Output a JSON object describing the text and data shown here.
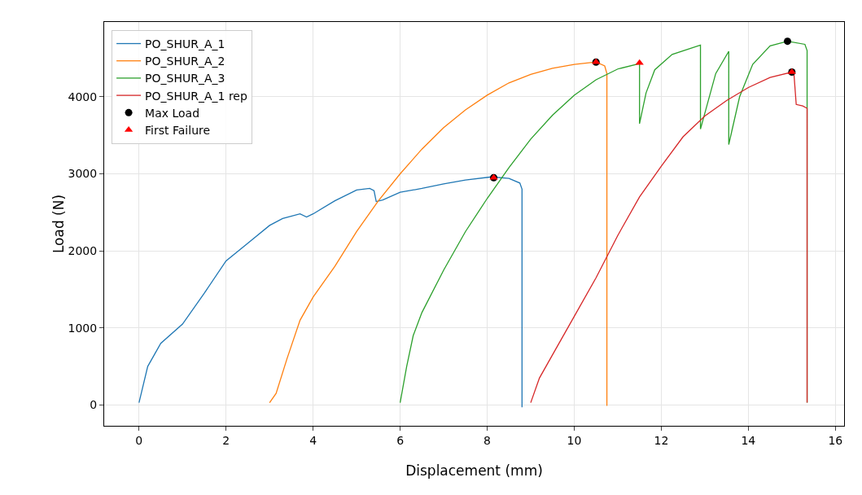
{
  "chart_data": {
    "type": "line",
    "xlabel": "Displacement (mm)",
    "ylabel": "Load (N)",
    "xlim": [
      -0.8,
      16.2
    ],
    "xticks": [
      0,
      2,
      4,
      6,
      8,
      10,
      12,
      14,
      16
    ],
    "ylim": [
      -270,
      4970
    ],
    "yticks": [
      0,
      1000,
      2000,
      3000,
      4000
    ],
    "grid": true,
    "legend": "top left",
    "line_style": "solid",
    "marker": "none",
    "series": [
      {
        "name": "PO_SHUR_A_1",
        "color": "#1f77b4",
        "x": [
          0,
          0.2,
          0.5,
          1,
          1.5,
          2,
          2.5,
          3,
          3.3,
          3.7,
          3.85,
          4,
          4.5,
          5,
          5.3,
          5.4,
          5.45,
          5.6,
          6,
          6.5,
          7,
          7.5,
          8.1,
          8.5,
          8.75,
          8.8,
          8.8
        ],
        "values": [
          30,
          500,
          800,
          1050,
          1450,
          1870,
          2100,
          2330,
          2420,
          2480,
          2440,
          2480,
          2650,
          2790,
          2810,
          2780,
          2640,
          2660,
          2760,
          2810,
          2870,
          2920,
          2960,
          2940,
          2880,
          2800,
          -30
        ]
      },
      {
        "name": "PO_SHUR_A_2",
        "color": "#ff7f0e",
        "x": [
          3,
          3.15,
          3.4,
          3.7,
          4,
          4.5,
          5,
          5.5,
          6,
          6.5,
          7,
          7.5,
          8,
          8.5,
          9,
          9.5,
          10,
          10.5,
          10.7,
          10.75,
          10.75
        ],
        "values": [
          30,
          150,
          600,
          1100,
          1400,
          1800,
          2250,
          2650,
          3000,
          3320,
          3600,
          3830,
          4020,
          4180,
          4290,
          4370,
          4420,
          4450,
          4400,
          4300,
          -10
        ]
      },
      {
        "name": "PO_SHUR_A_3",
        "color": "#2ca02c",
        "x": [
          6,
          6.15,
          6.3,
          6.5,
          7,
          7.5,
          8,
          8.5,
          9,
          9.5,
          10,
          10.5,
          11,
          11.5,
          11.5,
          11.65,
          11.85,
          12.25,
          12.9,
          12.9,
          13.25,
          13.55,
          13.55,
          13.8,
          14.1,
          14.5,
          14.9,
          15.3,
          15.35,
          15.35
        ],
        "values": [
          30,
          500,
          900,
          1200,
          1750,
          2250,
          2680,
          3080,
          3450,
          3760,
          4020,
          4220,
          4360,
          4430,
          3650,
          4050,
          4350,
          4550,
          4670,
          3580,
          4300,
          4590,
          3380,
          4000,
          4420,
          4660,
          4720,
          4680,
          4600,
          30
        ]
      },
      {
        "name": "PO_SHUR_A_1 rep",
        "color": "#d62728",
        "x": [
          9,
          9.2,
          9.5,
          10,
          10.5,
          11,
          11.5,
          12,
          12.5,
          13,
          13.5,
          14,
          14.5,
          15,
          15.05,
          15.1,
          15.25,
          15.35,
          15.35
        ],
        "values": [
          30,
          350,
          650,
          1150,
          1650,
          2200,
          2700,
          3100,
          3480,
          3750,
          3950,
          4120,
          4250,
          4320,
          4280,
          3900,
          3880,
          3850,
          30
        ]
      },
      {
        "name": "Max Load",
        "type": "scatter",
        "marker": "circle",
        "color": "#000000",
        "x": [
          8.15,
          10.5,
          14.9,
          15.0
        ],
        "values": [
          2950,
          4450,
          4720,
          4320
        ]
      },
      {
        "name": "First Failure",
        "type": "scatter",
        "marker": "triangle",
        "color": "#ff0000",
        "x": [
          8.15,
          10.5,
          11.5,
          15.0
        ],
        "values": [
          2950,
          4450,
          4440,
          4320
        ]
      }
    ]
  }
}
